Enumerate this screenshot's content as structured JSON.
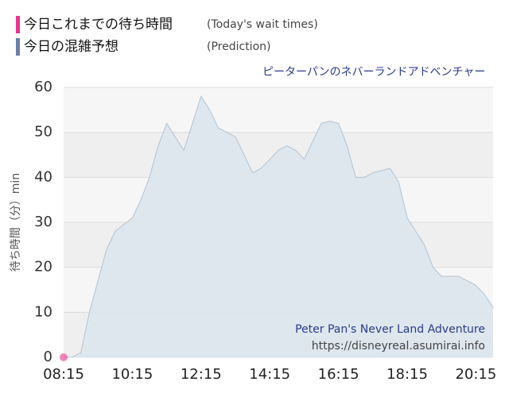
{
  "chart_data": {
    "type": "area",
    "subtitle": "ピーターパンのネバーランドアドベンチャー",
    "ylabel": "待ち時間（分）min",
    "annotations": [
      "Peter Pan's Never Land Adventure",
      "https://disneyreal.asumirai.info"
    ],
    "x": [
      "08:15",
      "08:30",
      "08:45",
      "09:00",
      "09:15",
      "09:30",
      "09:45",
      "10:00",
      "10:15",
      "10:30",
      "10:45",
      "11:00",
      "11:15",
      "11:30",
      "11:45",
      "12:00",
      "12:15",
      "12:30",
      "12:45",
      "13:00",
      "13:15",
      "13:30",
      "13:45",
      "14:00",
      "14:15",
      "14:30",
      "14:45",
      "15:00",
      "15:15",
      "15:30",
      "15:45",
      "16:00",
      "16:15",
      "16:30",
      "16:45",
      "17:00",
      "17:15",
      "17:30",
      "17:45",
      "18:00",
      "18:15",
      "18:30",
      "18:45",
      "19:00",
      "19:15",
      "19:30",
      "19:45",
      "20:00",
      "20:15",
      "20:30",
      "20:45"
    ],
    "series": [
      {
        "name": "今日これまでの待ち時間",
        "note": "(Today's wait times)",
        "color": "#e8368f",
        "values": [
          0,
          null,
          null,
          null,
          null,
          null,
          null,
          null,
          null,
          null,
          null,
          null,
          null,
          null,
          null,
          null,
          null,
          null,
          null,
          null,
          null,
          null,
          null,
          null,
          null,
          null,
          null,
          null,
          null,
          null,
          null,
          null,
          null,
          null,
          null,
          null,
          null,
          null,
          null,
          null,
          null,
          null,
          null,
          null,
          null,
          null,
          null,
          null,
          null,
          null,
          null
        ]
      },
      {
        "name": "今日の混雑予想",
        "note": "(Prediction)",
        "color": "#6b7fa8",
        "values": [
          0,
          0,
          1,
          10,
          17,
          24,
          28,
          29.5,
          31,
          35,
          40,
          47,
          52,
          49,
          46,
          52,
          58,
          55,
          51,
          50,
          49,
          45,
          41,
          42,
          44,
          46,
          47,
          46,
          44,
          48,
          52,
          52.5,
          52,
          47,
          40,
          40,
          41,
          41.5,
          42,
          39,
          31,
          28,
          25,
          20,
          18,
          18,
          18,
          17,
          16,
          14,
          11
        ]
      }
    ],
    "xlim": [
      "08:15",
      "20:45"
    ],
    "xticks": [
      "08:15",
      "10:15",
      "12:15",
      "14:15",
      "16:15",
      "18:15",
      "20:15"
    ],
    "ylim": [
      0,
      60
    ],
    "yticks": [
      0,
      10,
      20,
      30,
      40,
      50,
      60
    ],
    "grid": true
  }
}
